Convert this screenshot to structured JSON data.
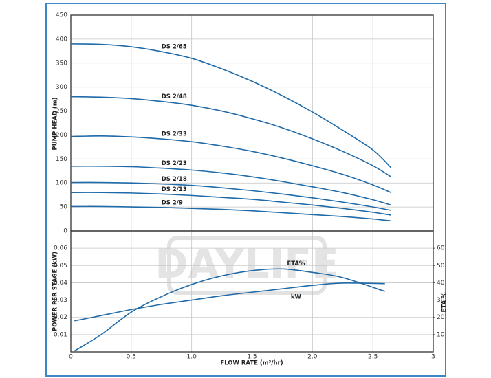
{
  "chart_data": [
    {
      "type": "line",
      "ylabel": "PUMP HEAD (m)",
      "x": [
        0,
        0.25,
        0.5,
        0.75,
        1,
        1.25,
        1.5,
        1.75,
        2,
        2.25,
        2.5,
        2.65
      ],
      "xlim": [
        0,
        3
      ],
      "ylim": [
        0,
        450
      ],
      "yticks": [
        0,
        50,
        100,
        150,
        200,
        250,
        300,
        350,
        400,
        450
      ],
      "grid": true,
      "series": [
        {
          "name": "DS 2/65",
          "color": "#1f6aa8",
          "values": [
            390,
            389,
            384,
            374,
            360,
            338,
            312,
            282,
            248,
            210,
            169,
            132
          ]
        },
        {
          "name": "DS 2/48",
          "color": "#1f6aa8",
          "values": [
            280,
            279,
            276,
            270,
            262,
            250,
            234,
            215,
            192,
            166,
            136,
            113
          ]
        },
        {
          "name": "DS 2/33",
          "color": "#1f6aa8",
          "values": [
            197,
            198,
            196,
            192,
            186,
            177,
            166,
            152,
            136,
            118,
            96,
            80
          ]
        },
        {
          "name": "DS 2/23",
          "color": "#1f6aa8",
          "values": [
            135,
            135,
            134,
            131,
            127,
            121,
            113,
            103,
            92,
            80,
            65,
            54
          ]
        },
        {
          "name": "DS 2/18",
          "color": "#1f6aa8",
          "values": [
            101,
            101,
            100,
            98,
            95,
            90,
            84,
            77,
            69,
            60,
            50,
            43
          ]
        },
        {
          "name": "DS 2/13",
          "color": "#1f6aa8",
          "values": [
            80,
            80,
            79,
            77,
            74,
            70,
            66,
            60,
            54,
            47,
            39,
            33
          ]
        },
        {
          "name": "DS 2/9",
          "color": "#1f6aa8",
          "values": [
            51,
            51,
            50,
            49,
            47,
            45,
            42,
            38,
            34,
            30,
            25,
            21
          ]
        }
      ]
    },
    {
      "type": "line",
      "watermark": "DAYLIFE",
      "xlabel": "FLOW RATE (m³/hr)",
      "ylabel": "POWER PER STAGE (kW)",
      "y2label": "ETA %",
      "x": [
        0.03,
        0.25,
        0.5,
        0.75,
        1,
        1.25,
        1.5,
        1.75,
        2,
        2.25,
        2.6
      ],
      "xlim": [
        0,
        3
      ],
      "xticks": [
        0,
        0.5,
        {
          "value": 1,
          "label": "1.0"
        },
        1.5,
        {
          "value": 2,
          "label": "2.0"
        },
        2.5,
        3
      ],
      "ylim": [
        0,
        0.07
      ],
      "yticks": [
        0.01,
        0.02,
        0.03,
        0.04,
        0.05,
        0.06
      ],
      "y2lim": [
        0,
        70
      ],
      "y2ticks": [
        10,
        20,
        30,
        40,
        50,
        60
      ],
      "grid": true,
      "series": [
        {
          "name": "ETA%",
          "color": "#1f6aa8",
          "axis": "y2",
          "values": [
            0.5,
            10,
            23,
            32,
            39,
            44,
            47,
            48,
            46,
            43,
            35
          ]
        },
        {
          "name": "kW",
          "color": "#1f6aa8",
          "values": [
            0.018,
            0.021,
            0.0245,
            0.0275,
            0.03,
            0.0325,
            0.0345,
            0.0365,
            0.0385,
            0.0398,
            0.0395
          ]
        }
      ]
    }
  ]
}
